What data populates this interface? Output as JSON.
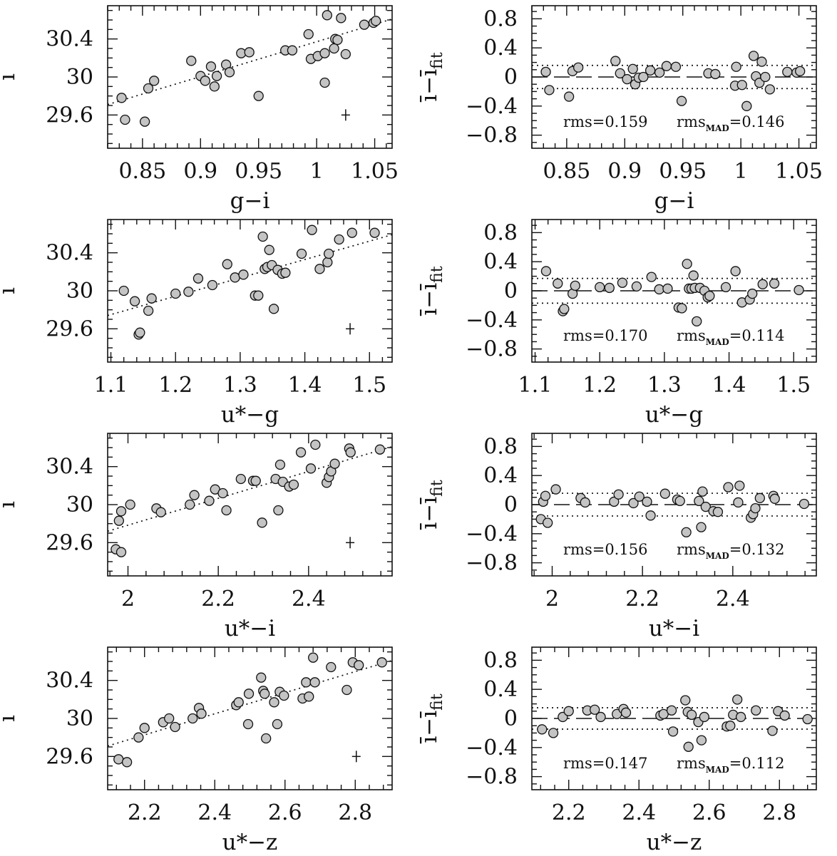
{
  "chart_data": [
    {
      "type": "scatter",
      "panel": "left",
      "xlabel": "g−i",
      "ylabel": "ī",
      "xlim": [
        0.82,
        1.065
      ],
      "ylim": [
        29.25,
        30.75
      ],
      "xticks": [
        0.85,
        0.9,
        0.95,
        1.0,
        1.05
      ],
      "xtick_labels": [
        "0.85",
        "0.9",
        "0.95",
        "1",
        "1.05"
      ],
      "yticks": [
        29.6,
        30.0,
        30.4
      ],
      "ytick_labels": [
        "29.6",
        "30",
        "30.4"
      ],
      "x": [
        0.832,
        0.835,
        0.852,
        0.855,
        0.86,
        0.892,
        0.9,
        0.904,
        0.909,
        0.912,
        0.914,
        0.922,
        0.925,
        0.935,
        0.942,
        0.95,
        0.973,
        0.979,
        0.993,
        0.995,
        1.001,
        1.007,
        1.007,
        1.009,
        1.015,
        1.016,
        1.018,
        1.021,
        1.025,
        1.041,
        1.049,
        1.051
      ],
      "y": [
        29.78,
        29.55,
        29.53,
        29.88,
        29.96,
        30.17,
        30.01,
        29.96,
        30.11,
        29.9,
        30.01,
        30.13,
        30.05,
        30.25,
        30.26,
        29.8,
        30.28,
        30.28,
        30.45,
        30.19,
        30.22,
        29.94,
        30.25,
        30.65,
        30.3,
        30.4,
        30.39,
        30.62,
        30.24,
        30.55,
        30.57,
        30.59
      ],
      "fit_line": {
        "x": [
          0.82,
          1.065
        ],
        "y": [
          29.71,
          30.61
        ]
      },
      "error_bar": {
        "x": 1.025,
        "y": 29.6,
        "xerr": 0.003,
        "yerr": 0.06
      }
    },
    {
      "type": "scatter",
      "panel": "right",
      "xlabel": "g−i",
      "ylabel": "ī−ī",
      "ylabel_sub": "fit",
      "xlim": [
        0.82,
        1.065
      ],
      "ylim": [
        -0.98,
        0.98
      ],
      "xticks": [
        0.85,
        0.9,
        0.95,
        1.0,
        1.05
      ],
      "xtick_labels": [
        "0.85",
        "0.9",
        "0.95",
        "1",
        "1.05"
      ],
      "yticks": [
        -0.8,
        -0.4,
        0.0,
        0.4,
        0.8
      ],
      "ytick_labels": [
        "−0.8",
        "−0.4",
        "0",
        "0.4",
        "0.8"
      ],
      "x": [
        0.832,
        0.835,
        0.852,
        0.855,
        0.86,
        0.892,
        0.896,
        0.902,
        0.907,
        0.909,
        0.912,
        0.916,
        0.922,
        0.93,
        0.936,
        0.944,
        0.949,
        0.972,
        0.978,
        0.995,
        0.996,
        1.001,
        1.005,
        1.011,
        1.013,
        1.016,
        1.018,
        1.021,
        1.025,
        1.04,
        1.048,
        1.051
      ],
      "y": [
        0.07,
        -0.18,
        -0.27,
        0.08,
        0.13,
        0.22,
        0.05,
        -0.03,
        0.11,
        -0.1,
        -0.01,
        0.0,
        0.09,
        0.06,
        0.15,
        0.14,
        -0.33,
        0.05,
        0.04,
        -0.12,
        0.14,
        -0.11,
        -0.4,
        0.29,
        0.01,
        -0.08,
        0.21,
        0.0,
        -0.17,
        0.07,
        0.06,
        0.08
      ],
      "zero_line": 0,
      "band": [
        -0.159,
        0.159
      ],
      "stats": {
        "rms": "rms=0.159",
        "mad_prefix": "rms",
        "mad_sub": "MAD",
        "mad_value": "=0.146"
      }
    },
    {
      "type": "scatter",
      "panel": "left",
      "xlabel": "u*−g",
      "ylabel": "ī",
      "xlim": [
        1.095,
        1.535
      ],
      "ylim": [
        29.25,
        30.75
      ],
      "xticks": [
        1.1,
        1.2,
        1.3,
        1.4,
        1.5
      ],
      "xtick_labels": [
        "1.1",
        "1.2",
        "1.3",
        "1.4",
        "1.5"
      ],
      "yticks": [
        29.6,
        30.0,
        30.4
      ],
      "ytick_labels": [
        "29.6",
        "30",
        "30.4"
      ],
      "x": [
        1.12,
        1.137,
        1.143,
        1.145,
        1.158,
        1.163,
        1.2,
        1.22,
        1.235,
        1.257,
        1.28,
        1.292,
        1.305,
        1.323,
        1.328,
        1.335,
        1.338,
        1.342,
        1.345,
        1.349,
        1.352,
        1.358,
        1.365,
        1.37,
        1.395,
        1.411,
        1.423,
        1.435,
        1.437,
        1.453,
        1.473,
        1.508
      ],
      "y": [
        30.0,
        29.89,
        29.54,
        29.56,
        29.79,
        29.92,
        29.97,
        29.99,
        30.13,
        30.06,
        30.28,
        30.14,
        30.17,
        29.95,
        29.95,
        30.57,
        30.23,
        30.25,
        30.43,
        30.27,
        29.81,
        30.22,
        30.18,
        30.19,
        30.39,
        30.64,
        30.23,
        30.3,
        30.39,
        30.54,
        30.61,
        30.61
      ],
      "fit_line": {
        "x": [
          1.095,
          1.535
        ],
        "y": [
          29.74,
          30.59
        ]
      },
      "error_bar": {
        "x": 1.47,
        "y": 29.6,
        "xerr": 0.003,
        "yerr": 0.06
      }
    },
    {
      "type": "scatter",
      "panel": "right",
      "xlabel": "u*−g",
      "ylabel": "ī−ī",
      "ylabel_sub": "fit",
      "xlim": [
        1.095,
        1.535
      ],
      "ylim": [
        -0.98,
        0.98
      ],
      "xticks": [
        1.1,
        1.2,
        1.3,
        1.4,
        1.5
      ],
      "xtick_labels": [
        "1.1",
        "1.2",
        "1.3",
        "1.4",
        "1.5"
      ],
      "yticks": [
        -0.8,
        -0.4,
        0.0,
        0.4,
        0.8
      ],
      "ytick_labels": [
        "−0.8",
        "−0.4",
        "0",
        "0.4",
        "0.8"
      ],
      "x": [
        1.117,
        1.135,
        1.143,
        1.145,
        1.158,
        1.162,
        1.2,
        1.215,
        1.235,
        1.257,
        1.28,
        1.292,
        1.305,
        1.322,
        1.327,
        1.335,
        1.338,
        1.342,
        1.345,
        1.347,
        1.35,
        1.355,
        1.362,
        1.367,
        1.37,
        1.395,
        1.41,
        1.42,
        1.432,
        1.436,
        1.452,
        1.47,
        1.508
      ],
      "y": [
        0.27,
        0.1,
        -0.28,
        -0.25,
        -0.04,
        0.07,
        0.05,
        0.04,
        0.11,
        0.06,
        0.19,
        0.02,
        0.03,
        -0.23,
        -0.24,
        0.37,
        0.03,
        0.03,
        0.21,
        0.04,
        -0.42,
        0.04,
        0.0,
        -0.09,
        -0.07,
        0.05,
        0.27,
        -0.16,
        -0.12,
        -0.04,
        0.09,
        0.1,
        0.01
      ],
      "zero_line": 0,
      "band": [
        -0.17,
        0.17
      ],
      "stats": {
        "rms": "rms=0.170",
        "mad_prefix": "rms",
        "mad_sub": "MAD",
        "mad_value": "=0.114"
      }
    },
    {
      "type": "scatter",
      "panel": "left",
      "xlabel": "u*−i",
      "ylabel": "ī",
      "xlim": [
        1.955,
        2.585
      ],
      "ylim": [
        29.25,
        30.75
      ],
      "xticks": [
        2.0,
        2.2,
        2.4
      ],
      "xtick_labels": [
        "2",
        "2.2",
        "2.4"
      ],
      "yticks": [
        29.6,
        30.0,
        30.4
      ],
      "ytick_labels": [
        "29.6",
        "30",
        "30.4"
      ],
      "x": [
        1.973,
        1.98,
        1.985,
        1.985,
        2.005,
        2.063,
        2.073,
        2.137,
        2.147,
        2.18,
        2.193,
        2.21,
        2.218,
        2.25,
        2.277,
        2.283,
        2.297,
        2.327,
        2.333,
        2.337,
        2.343,
        2.357,
        2.367,
        2.383,
        2.405,
        2.415,
        2.44,
        2.445,
        2.45,
        2.458,
        2.49,
        2.493,
        2.558
      ],
      "y": [
        29.53,
        29.83,
        29.93,
        29.5,
        30.0,
        29.96,
        29.92,
        30.0,
        30.1,
        30.04,
        30.16,
        30.12,
        29.94,
        30.27,
        30.25,
        30.25,
        29.81,
        30.27,
        29.94,
        30.42,
        30.24,
        30.19,
        30.21,
        30.55,
        30.38,
        30.63,
        30.23,
        30.29,
        30.35,
        30.43,
        30.59,
        30.55,
        30.58
      ],
      "fit_line": {
        "x": [
          1.955,
          2.585
        ],
        "y": [
          29.72,
          30.61
        ]
      },
      "error_bar": {
        "x": 2.492,
        "y": 29.6,
        "xerr": 0.003,
        "yerr": 0.06
      }
    },
    {
      "type": "scatter",
      "panel": "right",
      "xlabel": "u*−i",
      "ylabel": "ī−ī",
      "ylabel_sub": "fit",
      "xlim": [
        1.955,
        2.585
      ],
      "ylim": [
        -0.98,
        0.98
      ],
      "xticks": [
        2.0,
        2.2,
        2.4
      ],
      "xtick_labels": [
        "2",
        "2.2",
        "2.4"
      ],
      "yticks": [
        -0.8,
        -0.4,
        0.0,
        0.4,
        0.8
      ],
      "ytick_labels": [
        "−0.8",
        "−0.4",
        "0",
        "0.4",
        "0.8"
      ],
      "x": [
        1.975,
        1.98,
        1.985,
        1.99,
        2.008,
        2.063,
        2.073,
        2.137,
        2.147,
        2.18,
        2.193,
        2.21,
        2.218,
        2.25,
        2.277,
        2.283,
        2.297,
        2.325,
        2.33,
        2.333,
        2.34,
        2.357,
        2.367,
        2.39,
        2.412,
        2.415,
        2.44,
        2.445,
        2.45,
        2.46,
        2.49,
        2.493,
        2.558
      ],
      "y": [
        -0.2,
        0.04,
        0.12,
        -0.25,
        0.21,
        0.09,
        0.03,
        0.04,
        0.14,
        0.02,
        0.11,
        0.04,
        -0.15,
        0.15,
        0.07,
        0.05,
        -0.38,
        0.05,
        -0.31,
        0.18,
        -0.03,
        -0.09,
        -0.1,
        0.24,
        0.03,
        0.26,
        -0.18,
        -0.13,
        -0.05,
        0.09,
        0.12,
        0.08,
        0.01
      ],
      "zero_line": 0,
      "band": [
        -0.156,
        0.156
      ],
      "stats": {
        "rms": "rms=0.156",
        "mad_prefix": "rms",
        "mad_sub": "MAD",
        "mad_value": "=0.132"
      }
    },
    {
      "type": "scatter",
      "panel": "left",
      "xlabel": "u*−z",
      "ylabel": "ī",
      "xlim": [
        2.095,
        2.905
      ],
      "ylim": [
        29.25,
        30.75
      ],
      "xticks": [
        2.2,
        2.4,
        2.6,
        2.8
      ],
      "xtick_labels": [
        "2.2",
        "2.4",
        "2.6",
        "2.8"
      ],
      "yticks": [
        29.6,
        30.0,
        30.4
      ],
      "ytick_labels": [
        "29.6",
        "30",
        "30.4"
      ],
      "x": [
        2.126,
        2.15,
        2.183,
        2.2,
        2.253,
        2.27,
        2.287,
        2.337,
        2.355,
        2.362,
        2.461,
        2.468,
        2.495,
        2.497,
        2.532,
        2.538,
        2.542,
        2.546,
        2.569,
        2.578,
        2.585,
        2.597,
        2.65,
        2.66,
        2.668,
        2.68,
        2.685,
        2.731,
        2.776,
        2.793,
        2.81,
        2.876
      ],
      "y": [
        29.57,
        29.54,
        29.8,
        29.9,
        29.96,
        30.0,
        29.91,
        30.0,
        30.11,
        30.05,
        30.14,
        30.17,
        29.94,
        30.26,
        30.43,
        30.29,
        30.26,
        29.79,
        30.17,
        29.94,
        30.28,
        30.24,
        30.21,
        30.38,
        30.23,
        30.64,
        30.38,
        30.54,
        30.3,
        30.59,
        30.56,
        30.59
      ],
      "fit_line": {
        "x": [
          2.095,
          2.905
        ],
        "y": [
          29.71,
          30.61
        ]
      },
      "error_bar": {
        "x": 2.803,
        "y": 29.6,
        "xerr": 0.003,
        "yerr": 0.06
      }
    },
    {
      "type": "scatter",
      "panel": "right",
      "xlabel": "u*−z",
      "ylabel": "ī−ī",
      "ylabel_sub": "fit",
      "xlim": [
        2.095,
        2.905
      ],
      "ylim": [
        -0.98,
        0.98
      ],
      "xticks": [
        2.2,
        2.4,
        2.6,
        2.8
      ],
      "xtick_labels": [
        "2.2",
        "2.4",
        "2.6",
        "2.8"
      ],
      "yticks": [
        -0.8,
        -0.4,
        0.0,
        0.4,
        0.8
      ],
      "ytick_labels": [
        "−0.8",
        "−0.4",
        "0",
        "0.4",
        "0.8"
      ],
      "x": [
        2.124,
        2.156,
        2.183,
        2.2,
        2.253,
        2.274,
        2.291,
        2.337,
        2.356,
        2.363,
        2.461,
        2.47,
        2.493,
        2.497,
        2.532,
        2.539,
        2.541,
        2.55,
        2.569,
        2.578,
        2.586,
        2.65,
        2.66,
        2.668,
        2.68,
        2.69,
        2.733,
        2.78,
        2.796,
        2.815,
        2.88
      ],
      "y": [
        -0.15,
        -0.2,
        0.02,
        0.1,
        0.11,
        0.12,
        0.02,
        0.06,
        0.13,
        0.08,
        0.04,
        0.06,
        0.11,
        -0.18,
        0.25,
        0.09,
        -0.39,
        0.05,
        -0.05,
        -0.3,
        0.02,
        -0.11,
        -0.1,
        0.05,
        0.26,
        0.02,
        0.11,
        -0.17,
        0.1,
        0.04,
        -0.01
      ],
      "zero_line": 0,
      "band": [
        -0.147,
        0.147
      ],
      "stats": {
        "rms": "rms=0.147",
        "mad_prefix": "rms",
        "mad_sub": "MAD",
        "mad_value": "=0.112"
      }
    }
  ]
}
